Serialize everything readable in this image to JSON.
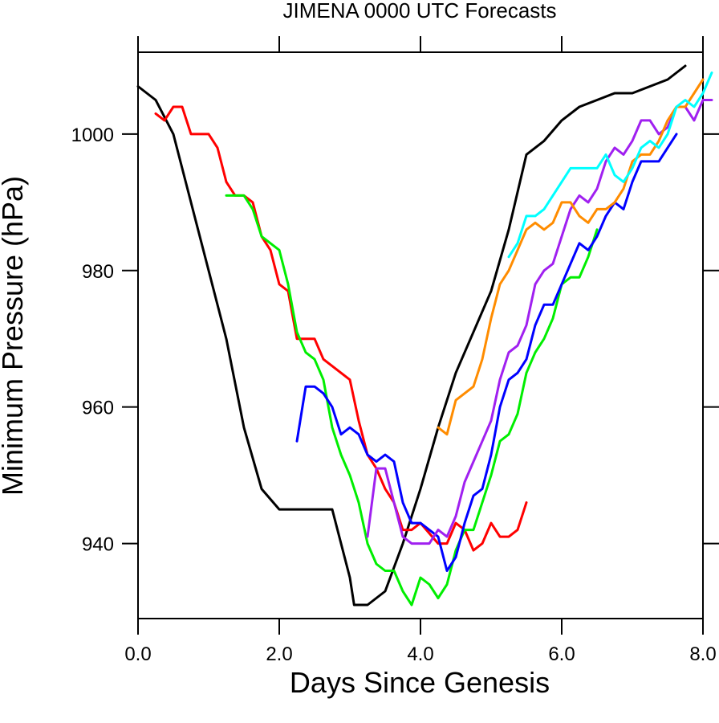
{
  "chart_data": {
    "type": "line",
    "title": "JIMENA 0000 UTC Forecasts",
    "xlabel": "Days Since Genesis",
    "ylabel": "Minimum Pressure (hPa)",
    "xlim": [
      0,
      8
    ],
    "ylim": [
      929,
      1012
    ],
    "xticks": [
      0,
      2,
      4,
      6,
      8
    ],
    "xtick_labels": [
      "0.0",
      "2.0",
      "4.0",
      "6.0",
      "8.0"
    ],
    "yticks": [
      940,
      960,
      980,
      1000
    ],
    "ytick_labels": [
      "940",
      "960",
      "980",
      "1000"
    ],
    "grid": false,
    "legend": "none",
    "series": [
      {
        "color": "#000000",
        "points": [
          [
            0,
            1007
          ],
          [
            0.25,
            1005
          ],
          [
            0.5,
            1000
          ],
          [
            0.75,
            990
          ],
          [
            1.0,
            980
          ],
          [
            1.25,
            970
          ],
          [
            1.5,
            957
          ],
          [
            1.75,
            948
          ],
          [
            2.0,
            945
          ],
          [
            2.25,
            945
          ],
          [
            2.5,
            945
          ],
          [
            2.75,
            945
          ],
          [
            3.0,
            935
          ],
          [
            3.06,
            931
          ],
          [
            3.25,
            931
          ],
          [
            3.5,
            933
          ],
          [
            3.75,
            940
          ],
          [
            4.0,
            948
          ],
          [
            4.25,
            957
          ],
          [
            4.5,
            965
          ],
          [
            4.75,
            971
          ],
          [
            5.0,
            977
          ],
          [
            5.25,
            986
          ],
          [
            5.5,
            997
          ],
          [
            5.75,
            999
          ],
          [
            6.0,
            1002
          ],
          [
            6.25,
            1004
          ],
          [
            6.5,
            1005
          ],
          [
            6.75,
            1006
          ],
          [
            7.0,
            1006
          ],
          [
            7.25,
            1007
          ],
          [
            7.5,
            1008
          ],
          [
            7.75,
            1010
          ]
        ]
      },
      {
        "color": "#ff0000",
        "points": [
          [
            0.25,
            1003
          ],
          [
            0.375,
            1002
          ],
          [
            0.5,
            1004
          ],
          [
            0.625,
            1004
          ],
          [
            0.75,
            1000
          ],
          [
            1.0,
            1000
          ],
          [
            1.125,
            998
          ],
          [
            1.25,
            993
          ],
          [
            1.375,
            991
          ],
          [
            1.5,
            991
          ],
          [
            1.625,
            990
          ],
          [
            1.75,
            985
          ],
          [
            1.875,
            983
          ],
          [
            2.0,
            978
          ],
          [
            2.125,
            977
          ],
          [
            2.25,
            970
          ],
          [
            2.5,
            970
          ],
          [
            2.625,
            967
          ],
          [
            3.0,
            964
          ],
          [
            3.125,
            958
          ],
          [
            3.25,
            953
          ],
          [
            3.375,
            951
          ],
          [
            3.5,
            948
          ],
          [
            3.625,
            946
          ],
          [
            3.75,
            942
          ],
          [
            3.875,
            942
          ],
          [
            4.0,
            943
          ],
          [
            4.25,
            940
          ],
          [
            4.375,
            940
          ],
          [
            4.5,
            943
          ],
          [
            4.625,
            942
          ],
          [
            4.75,
            939
          ],
          [
            4.875,
            940
          ],
          [
            5.0,
            943
          ],
          [
            5.125,
            941
          ],
          [
            5.25,
            941
          ],
          [
            5.375,
            942
          ],
          [
            5.5,
            946
          ]
        ]
      },
      {
        "color": "#00ee00",
        "points": [
          [
            1.25,
            991
          ],
          [
            1.5,
            991
          ],
          [
            1.625,
            989
          ],
          [
            1.75,
            985
          ],
          [
            2.0,
            983
          ],
          [
            2.125,
            978
          ],
          [
            2.25,
            971
          ],
          [
            2.375,
            968
          ],
          [
            2.5,
            967
          ],
          [
            2.625,
            964
          ],
          [
            2.75,
            957
          ],
          [
            2.875,
            953
          ],
          [
            3.0,
            950
          ],
          [
            3.125,
            946
          ],
          [
            3.25,
            940
          ],
          [
            3.375,
            937
          ],
          [
            3.5,
            936
          ],
          [
            3.625,
            936
          ],
          [
            3.75,
            933
          ],
          [
            3.875,
            931
          ],
          [
            4.0,
            935
          ],
          [
            4.125,
            934
          ],
          [
            4.25,
            932
          ],
          [
            4.375,
            934
          ],
          [
            4.5,
            939
          ],
          [
            4.625,
            942
          ],
          [
            4.75,
            942
          ],
          [
            4.875,
            946
          ],
          [
            5.0,
            950
          ],
          [
            5.125,
            955
          ],
          [
            5.25,
            956
          ],
          [
            5.375,
            959
          ],
          [
            5.5,
            965
          ],
          [
            5.625,
            968
          ],
          [
            5.75,
            970
          ],
          [
            5.875,
            973
          ],
          [
            6.0,
            978
          ],
          [
            6.125,
            979
          ],
          [
            6.25,
            979
          ],
          [
            6.375,
            982
          ],
          [
            6.5,
            986
          ]
        ]
      },
      {
        "color": "#0000ff",
        "points": [
          [
            2.25,
            955
          ],
          [
            2.375,
            963
          ],
          [
            2.5,
            963
          ],
          [
            2.625,
            962
          ],
          [
            2.75,
            960
          ],
          [
            2.875,
            956
          ],
          [
            3.0,
            957
          ],
          [
            3.125,
            956
          ],
          [
            3.25,
            953
          ],
          [
            3.375,
            952
          ],
          [
            3.5,
            953
          ],
          [
            3.625,
            952
          ],
          [
            3.75,
            946
          ],
          [
            3.875,
            943
          ],
          [
            4.0,
            943
          ],
          [
            4.25,
            941
          ],
          [
            4.375,
            936
          ],
          [
            4.5,
            938
          ],
          [
            4.625,
            943
          ],
          [
            4.75,
            947
          ],
          [
            4.875,
            948
          ],
          [
            5.0,
            953
          ],
          [
            5.125,
            960
          ],
          [
            5.25,
            964
          ],
          [
            5.375,
            965
          ],
          [
            5.5,
            967
          ],
          [
            5.625,
            972
          ],
          [
            5.75,
            975
          ],
          [
            5.875,
            975
          ],
          [
            6.0,
            978
          ],
          [
            6.125,
            981
          ],
          [
            6.25,
            984
          ],
          [
            6.375,
            983
          ],
          [
            6.5,
            985
          ],
          [
            6.625,
            988
          ],
          [
            6.75,
            990
          ],
          [
            6.875,
            989
          ],
          [
            7.0,
            993
          ],
          [
            7.125,
            996
          ],
          [
            7.25,
            996
          ],
          [
            7.375,
            996
          ],
          [
            7.5,
            998
          ],
          [
            7.625,
            1000
          ]
        ]
      },
      {
        "color": "#a020f0",
        "points": [
          [
            3.25,
            941
          ],
          [
            3.375,
            951
          ],
          [
            3.5,
            951
          ],
          [
            3.625,
            946
          ],
          [
            3.75,
            941
          ],
          [
            3.875,
            940
          ],
          [
            4.0,
            940
          ],
          [
            4.125,
            940
          ],
          [
            4.25,
            942
          ],
          [
            4.375,
            941
          ],
          [
            4.5,
            944
          ],
          [
            4.625,
            949
          ],
          [
            4.75,
            952
          ],
          [
            4.875,
            955
          ],
          [
            5.0,
            958
          ],
          [
            5.125,
            964
          ],
          [
            5.25,
            968
          ],
          [
            5.375,
            969
          ],
          [
            5.5,
            972
          ],
          [
            5.625,
            978
          ],
          [
            5.75,
            980
          ],
          [
            5.875,
            981
          ],
          [
            6.0,
            985
          ],
          [
            6.125,
            989
          ],
          [
            6.25,
            991
          ],
          [
            6.375,
            990
          ],
          [
            6.5,
            992
          ],
          [
            6.625,
            996
          ],
          [
            6.75,
            998
          ],
          [
            6.875,
            997
          ],
          [
            7.0,
            999
          ],
          [
            7.125,
            1002
          ],
          [
            7.25,
            1002
          ],
          [
            7.375,
            1000
          ],
          [
            7.5,
            1001
          ],
          [
            7.625,
            1004
          ],
          [
            7.75,
            1004
          ],
          [
            7.875,
            1002
          ],
          [
            8.0,
            1005
          ],
          [
            8.125,
            1005
          ]
        ]
      },
      {
        "color": "#ff8c00",
        "points": [
          [
            4.25,
            957
          ],
          [
            4.375,
            956
          ],
          [
            4.5,
            961
          ],
          [
            4.625,
            962
          ],
          [
            4.75,
            963
          ],
          [
            4.875,
            967
          ],
          [
            5.0,
            973
          ],
          [
            5.125,
            978
          ],
          [
            5.25,
            980
          ],
          [
            5.375,
            983
          ],
          [
            5.5,
            986
          ],
          [
            5.625,
            987
          ],
          [
            5.75,
            986
          ],
          [
            5.875,
            987
          ],
          [
            6.0,
            990
          ],
          [
            6.125,
            990
          ],
          [
            6.25,
            988
          ],
          [
            6.375,
            987
          ],
          [
            6.5,
            989
          ],
          [
            6.625,
            989
          ],
          [
            6.75,
            990
          ],
          [
            6.875,
            992
          ],
          [
            7.0,
            996
          ],
          [
            7.125,
            997
          ],
          [
            7.25,
            997
          ],
          [
            7.375,
            999
          ],
          [
            7.5,
            1002
          ],
          [
            7.625,
            1004
          ],
          [
            7.75,
            1004
          ],
          [
            7.875,
            1006
          ],
          [
            8.0,
            1008
          ]
        ]
      },
      {
        "color": "#00ffff",
        "points": [
          [
            5.25,
            982
          ],
          [
            5.375,
            984
          ],
          [
            5.5,
            988
          ],
          [
            5.625,
            988
          ],
          [
            5.75,
            989
          ],
          [
            5.875,
            991
          ],
          [
            6.0,
            993
          ],
          [
            6.125,
            995
          ],
          [
            6.25,
            995
          ],
          [
            6.375,
            995
          ],
          [
            6.5,
            995
          ],
          [
            6.625,
            997
          ],
          [
            6.75,
            994
          ],
          [
            6.875,
            993
          ],
          [
            7.0,
            995
          ],
          [
            7.125,
            998
          ],
          [
            7.25,
            999
          ],
          [
            7.375,
            998
          ],
          [
            7.5,
            1000
          ],
          [
            7.625,
            1004
          ],
          [
            7.75,
            1005
          ],
          [
            7.875,
            1004
          ],
          [
            8.0,
            1006
          ],
          [
            8.125,
            1009
          ]
        ]
      }
    ]
  }
}
